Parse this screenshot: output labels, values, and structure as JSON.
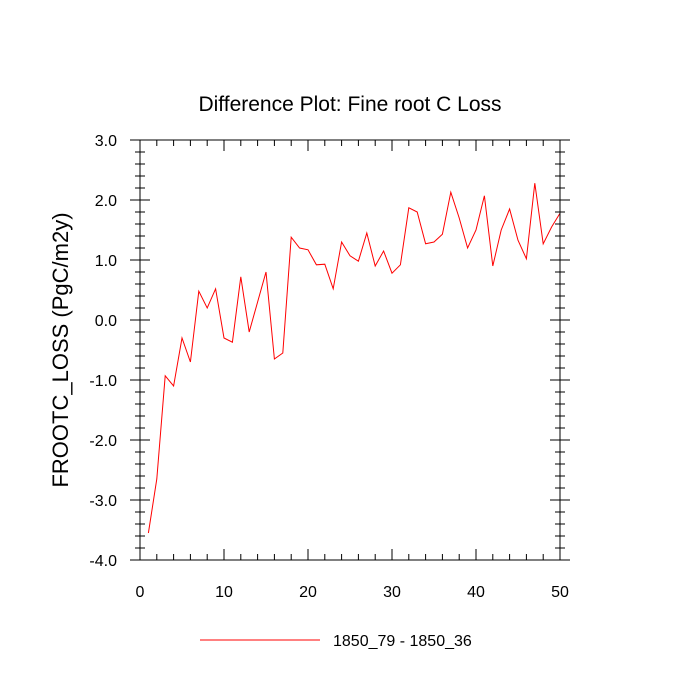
{
  "chart_data": {
    "type": "line",
    "title": "Difference Plot: Fine root C Loss",
    "xlabel": "",
    "ylabel": "FROOTC_LOSS  (PgC/m2y)",
    "xlim": [
      0,
      50
    ],
    "ylim": [
      -4.0,
      3.0
    ],
    "x_ticks": [
      0,
      10,
      20,
      30,
      40,
      50
    ],
    "x_tick_labels": [
      "0",
      "10",
      "20",
      "30",
      "40",
      "50"
    ],
    "y_ticks": [
      -4.0,
      -3.0,
      -2.0,
      -1.0,
      0.0,
      1.0,
      2.0,
      3.0
    ],
    "y_tick_labels": [
      "-4.0",
      "-3.0",
      "-2.0",
      "-1.0",
      "0.0",
      "1.0",
      "2.0",
      "3.0"
    ],
    "grid": false,
    "legend_position": "bottom-center",
    "series": [
      {
        "name": "1850_79 - 1850_36",
        "color": "#ff0000",
        "x": [
          1,
          2,
          3,
          4,
          5,
          6,
          7,
          8,
          9,
          10,
          11,
          12,
          13,
          14,
          15,
          16,
          17,
          18,
          19,
          20,
          21,
          22,
          23,
          24,
          25,
          26,
          27,
          28,
          29,
          30,
          31,
          32,
          33,
          34,
          35,
          36,
          37,
          38,
          39,
          40,
          41,
          42,
          43,
          44,
          45,
          46,
          47,
          48,
          49,
          50
        ],
        "y": [
          -3.55,
          -2.65,
          -0.93,
          -1.1,
          -0.3,
          -0.7,
          0.48,
          0.2,
          0.52,
          -0.3,
          -0.37,
          0.72,
          -0.2,
          0.3,
          0.8,
          -0.65,
          -0.55,
          1.38,
          1.2,
          1.17,
          0.92,
          0.93,
          0.52,
          1.3,
          1.07,
          0.98,
          1.45,
          0.9,
          1.15,
          0.78,
          0.92,
          1.87,
          1.8,
          1.27,
          1.3,
          1.43,
          2.13,
          1.7,
          1.2,
          1.5,
          2.07,
          0.9,
          1.5,
          1.85,
          1.33,
          1.02,
          2.28,
          1.27,
          1.55,
          1.78
        ]
      }
    ]
  }
}
